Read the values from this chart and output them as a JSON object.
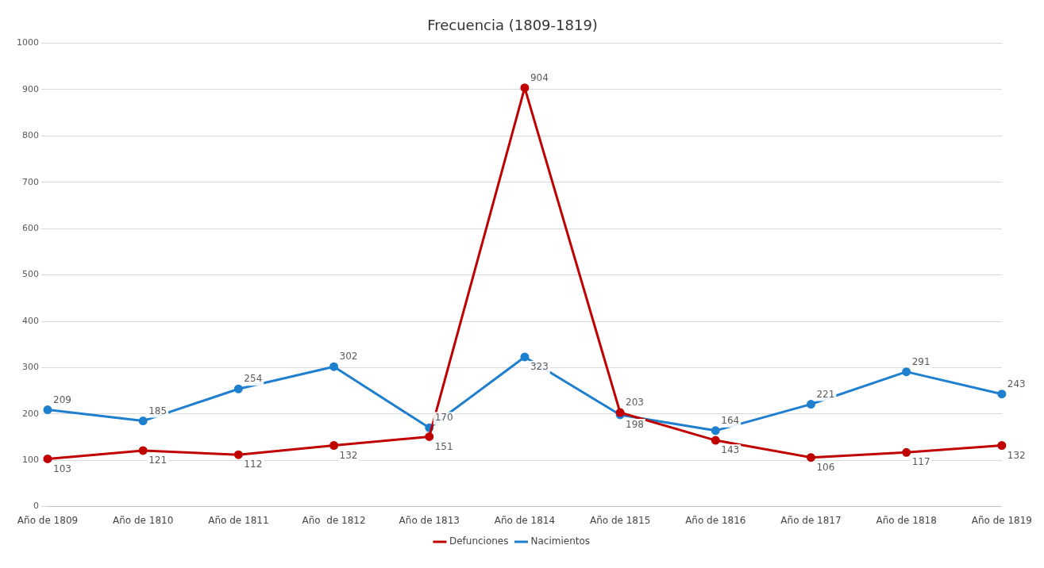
{
  "chart_data": {
    "type": "line",
    "title": "Frecuencia (1809-1819)",
    "categories": [
      "Año de 1809",
      "Año de 1810",
      "Año de 1811",
      "Año  de 1812",
      "Año de 1813",
      "Año de 1814",
      "Año de 1815",
      "Año de 1816",
      "Año de 1817",
      "Año de 1818",
      "Año de 1819"
    ],
    "series": [
      {
        "name": "Defunciones",
        "color": "#c00000",
        "values": [
          103,
          121,
          112,
          132,
          151,
          904,
          203,
          143,
          106,
          117,
          132
        ]
      },
      {
        "name": "Nacimientos",
        "color": "#1f7fcf",
        "values": [
          209,
          185,
          254,
          302,
          170,
          323,
          198,
          164,
          221,
          291,
          243
        ]
      }
    ],
    "ylim": [
      0,
      1000
    ],
    "yticks": [
      0,
      100,
      200,
      300,
      400,
      500,
      600,
      700,
      800,
      900,
      1000
    ],
    "grid": "y",
    "legend": "bottom",
    "marker": "circle",
    "line_style": "solid",
    "data_labels": true
  }
}
